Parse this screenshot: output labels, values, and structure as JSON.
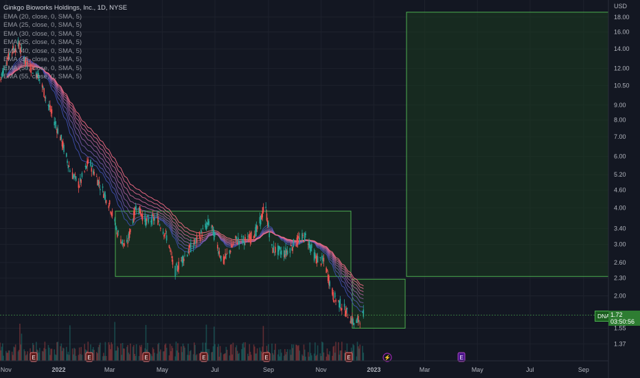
{
  "header": {
    "title": "Ginkgo Bioworks Holdings, Inc., 1D, NYSE",
    "indicators": [
      "EMA (20, close, 0, SMA, 5)",
      "EMA (25, close, 0, SMA, 5)",
      "EMA (30, close, 0, SMA, 5)",
      "EMA (35, close, 0, SMA, 5)",
      "EMA (40, close, 0, SMA, 5)",
      "EMA (45, close, 0, SMA, 5)",
      "EMA (50, close, 0, SMA, 5)",
      "EMA (55, close, 0, SMA, 5)"
    ]
  },
  "price_axis": {
    "currency": "USD",
    "ticks": [
      "18.00",
      "16.00",
      "14.00",
      "12.00",
      "10.50",
      "9.00",
      "8.00",
      "7.00",
      "6.00",
      "5.20",
      "4.60",
      "4.00",
      "3.40",
      "3.00",
      "2.60",
      "2.30",
      "2.00",
      "1.72",
      "1.55",
      "1.37"
    ]
  },
  "last_price": {
    "symbol": "DNA",
    "price": "1.72",
    "countdown": "03:50:56"
  },
  "colors": {
    "up": "#26a69a",
    "down": "#ef5350",
    "box_border": "#4caf50",
    "box_fill": "#1b3a1f",
    "ema_fast": "#3f51b5",
    "ema_slow": "#ff6f8a"
  },
  "chart_data": {
    "type": "candlestick",
    "title": "Ginkgo Bioworks Holdings, Inc., 1D, NYSE",
    "y_scale": "log",
    "ylim": [
      1.3,
      19.5
    ],
    "x_ticks": [
      "Nov",
      "2022",
      "Mar",
      "May",
      "Jul",
      "Sep",
      "Nov",
      "2023",
      "Mar",
      "May",
      "Jul",
      "Sep"
    ],
    "close_path": [
      {
        "date": "2021-10-25",
        "close": 11.0
      },
      {
        "date": "2021-11-05",
        "close": 13.5
      },
      {
        "date": "2021-11-15",
        "close": 14.5
      },
      {
        "date": "2021-11-25",
        "close": 12.5
      },
      {
        "date": "2021-12-08",
        "close": 11.5
      },
      {
        "date": "2021-12-20",
        "close": 9.0
      },
      {
        "date": "2022-01-03",
        "close": 7.0
      },
      {
        "date": "2022-01-15",
        "close": 5.3
      },
      {
        "date": "2022-01-25",
        "close": 4.8
      },
      {
        "date": "2022-02-05",
        "close": 5.8
      },
      {
        "date": "2022-02-15",
        "close": 5.0
      },
      {
        "date": "2022-03-01",
        "close": 4.1
      },
      {
        "date": "2022-03-10",
        "close": 3.3
      },
      {
        "date": "2022-03-20",
        "close": 2.9
      },
      {
        "date": "2022-04-01",
        "close": 4.1
      },
      {
        "date": "2022-04-12",
        "close": 3.6
      },
      {
        "date": "2022-04-25",
        "close": 3.7
      },
      {
        "date": "2022-05-08",
        "close": 3.1
      },
      {
        "date": "2022-05-15",
        "close": 2.4
      },
      {
        "date": "2022-05-25",
        "close": 2.7
      },
      {
        "date": "2022-06-10",
        "close": 3.1
      },
      {
        "date": "2022-06-25",
        "close": 3.6
      },
      {
        "date": "2022-07-10",
        "close": 2.6
      },
      {
        "date": "2022-07-25",
        "close": 3.1
      },
      {
        "date": "2022-08-08",
        "close": 3.1
      },
      {
        "date": "2022-08-20",
        "close": 3.4
      },
      {
        "date": "2022-08-28",
        "close": 4.1
      },
      {
        "date": "2022-09-05",
        "close": 2.9
      },
      {
        "date": "2022-09-20",
        "close": 2.8
      },
      {
        "date": "2022-10-05",
        "close": 3.1
      },
      {
        "date": "2022-10-15",
        "close": 3.2
      },
      {
        "date": "2022-10-25",
        "close": 2.7
      },
      {
        "date": "2022-11-05",
        "close": 2.6
      },
      {
        "date": "2022-11-15",
        "close": 2.0
      },
      {
        "date": "2022-11-28",
        "close": 1.8
      },
      {
        "date": "2022-12-10",
        "close": 1.6
      },
      {
        "date": "2022-12-20",
        "close": 1.72
      }
    ],
    "volume_markers": [
      "E",
      "E",
      "E",
      "E",
      "E",
      "lightning",
      "E"
    ],
    "boxes": [
      {
        "role": "consolidation",
        "y_top": 3.9,
        "y_bottom": 2.33
      },
      {
        "role": "current",
        "y_top": 2.28,
        "y_bottom": 1.55
      },
      {
        "role": "target",
        "y_top": 18.7,
        "y_bottom": 2.33
      }
    ]
  }
}
